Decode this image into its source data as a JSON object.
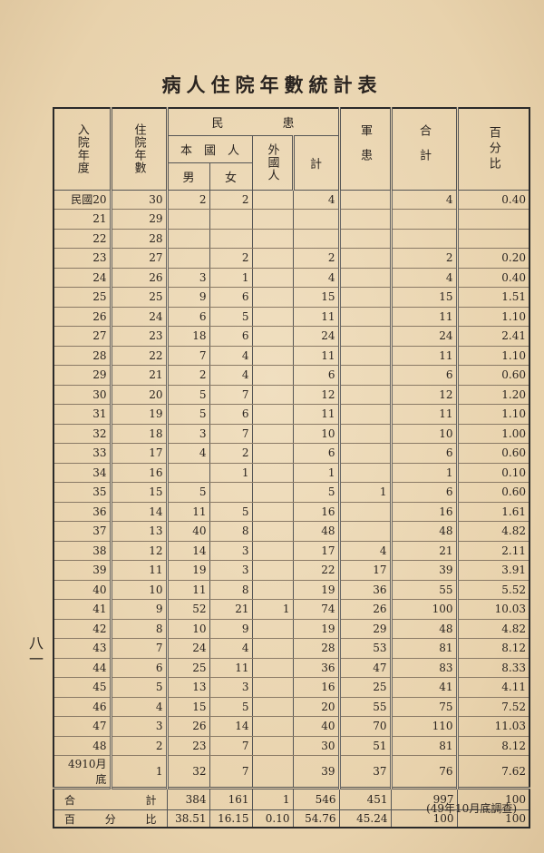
{
  "title": "病人住院年數統計表",
  "page_number": "八一",
  "note": "(49年10月底調查)",
  "headers": {
    "admission_year": "入院年度",
    "years_hospitalized": "住院年數",
    "civilian_patients": "民　　　　　患",
    "domestic": "本　國　人",
    "male": "男",
    "female": "女",
    "foreign": "外國人",
    "subtotal": "計",
    "military": "軍患",
    "total": "合計",
    "percent": "百分比"
  },
  "rows": [
    [
      "民國20",
      "30",
      "2",
      "2",
      "",
      "4",
      "",
      "4",
      "0.40"
    ],
    [
      "21",
      "29",
      "",
      "",
      "",
      "",
      "",
      "",
      ""
    ],
    [
      "22",
      "28",
      "",
      "",
      "",
      "",
      "",
      "",
      ""
    ],
    [
      "23",
      "27",
      "",
      "2",
      "",
      "2",
      "",
      "2",
      "0.20"
    ],
    [
      "24",
      "26",
      "3",
      "1",
      "",
      "4",
      "",
      "4",
      "0.40"
    ],
    [
      "25",
      "25",
      "9",
      "6",
      "",
      "15",
      "",
      "15",
      "1.51"
    ],
    [
      "26",
      "24",
      "6",
      "5",
      "",
      "11",
      "",
      "11",
      "1.10"
    ],
    [
      "27",
      "23",
      "18",
      "6",
      "",
      "24",
      "",
      "24",
      "2.41"
    ],
    [
      "28",
      "22",
      "7",
      "4",
      "",
      "11",
      "",
      "11",
      "1.10"
    ],
    [
      "29",
      "21",
      "2",
      "4",
      "",
      "6",
      "",
      "6",
      "0.60"
    ],
    [
      "30",
      "20",
      "5",
      "7",
      "",
      "12",
      "",
      "12",
      "1.20"
    ],
    [
      "31",
      "19",
      "5",
      "6",
      "",
      "11",
      "",
      "11",
      "1.10"
    ],
    [
      "32",
      "18",
      "3",
      "7",
      "",
      "10",
      "",
      "10",
      "1.00"
    ],
    [
      "33",
      "17",
      "4",
      "2",
      "",
      "6",
      "",
      "6",
      "0.60"
    ],
    [
      "34",
      "16",
      "",
      "1",
      "",
      "1",
      "",
      "1",
      "0.10"
    ],
    [
      "35",
      "15",
      "5",
      "",
      "",
      "5",
      "1",
      "6",
      "0.60"
    ],
    [
      "36",
      "14",
      "11",
      "5",
      "",
      "16",
      "",
      "16",
      "1.61"
    ],
    [
      "37",
      "13",
      "40",
      "8",
      "",
      "48",
      "",
      "48",
      "4.82"
    ],
    [
      "38",
      "12",
      "14",
      "3",
      "",
      "17",
      "4",
      "21",
      "2.11"
    ],
    [
      "39",
      "11",
      "19",
      "3",
      "",
      "22",
      "17",
      "39",
      "3.91"
    ],
    [
      "40",
      "10",
      "11",
      "8",
      "",
      "19",
      "36",
      "55",
      "5.52"
    ],
    [
      "41",
      "9",
      "52",
      "21",
      "1",
      "74",
      "26",
      "100",
      "10.03"
    ],
    [
      "42",
      "8",
      "10",
      "9",
      "",
      "19",
      "29",
      "48",
      "4.82"
    ],
    [
      "43",
      "7",
      "24",
      "4",
      "",
      "28",
      "53",
      "81",
      "8.12"
    ],
    [
      "44",
      "6",
      "25",
      "11",
      "",
      "36",
      "47",
      "83",
      "8.33"
    ],
    [
      "45",
      "5",
      "13",
      "3",
      "",
      "16",
      "25",
      "41",
      "4.11"
    ],
    [
      "46",
      "4",
      "15",
      "5",
      "",
      "20",
      "55",
      "75",
      "7.52"
    ],
    [
      "47",
      "3",
      "26",
      "14",
      "",
      "40",
      "70",
      "110",
      "11.03"
    ],
    [
      "48",
      "2",
      "23",
      "7",
      "",
      "30",
      "51",
      "81",
      "8.12"
    ],
    [
      "4910月底",
      "1",
      "32",
      "7",
      "",
      "39",
      "37",
      "76",
      "7.62"
    ]
  ],
  "total_row": {
    "label_left": "合",
    "label_right": "計",
    "values": [
      "384",
      "161",
      "1",
      "546",
      "451",
      "997",
      "100"
    ]
  },
  "percent_row": {
    "label_left": "百",
    "label_mid": "分",
    "label_right": "比",
    "values": [
      "38.51",
      "16.15",
      "0.10",
      "54.76",
      "45.24",
      "100",
      "100"
    ]
  }
}
